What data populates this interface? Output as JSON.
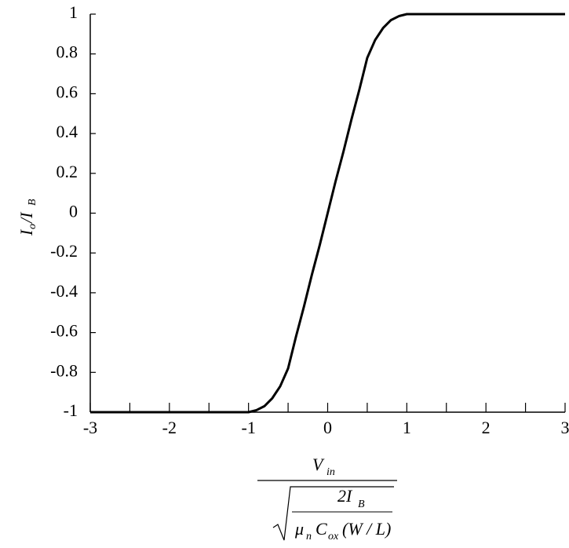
{
  "chart_data": {
    "type": "line",
    "ylabel_parts": [
      "I",
      "o",
      "/I",
      "B"
    ],
    "xlabel_parts": {
      "numerator": "V",
      "numerator_sub": "in",
      "inner_top": "2I",
      "inner_top_sub": "B",
      "mu": "μ",
      "mu_sub": "n",
      "c": "C",
      "c_sub": "ox",
      "ratio": "(W / L)"
    },
    "x": [
      -3,
      -1.1,
      -1.0,
      -0.9,
      -0.8,
      -0.7,
      -0.6,
      -0.5,
      -0.4,
      -0.3,
      -0.2,
      -0.1,
      0,
      0.1,
      0.2,
      0.3,
      0.4,
      0.5,
      0.6,
      0.7,
      0.8,
      0.9,
      1.0,
      1.1,
      3
    ],
    "values": [
      -1,
      -1,
      -1,
      -0.99,
      -0.97,
      -0.93,
      -0.87,
      -0.78,
      -0.62,
      -0.47,
      -0.31,
      -0.16,
      0,
      0.16,
      0.31,
      0.47,
      0.62,
      0.78,
      0.87,
      0.93,
      0.97,
      0.99,
      1,
      1,
      1
    ],
    "color": "#000000",
    "xlim": [
      -3,
      3
    ],
    "xticks": [
      -3,
      -2,
      -1,
      0,
      1,
      2,
      3
    ],
    "xminorticks": [
      -2.5,
      -1.5,
      -0.5,
      0.5,
      1.5,
      2.5
    ],
    "ylim": [
      -1,
      1
    ],
    "yticks": [
      -1,
      -0.8,
      -0.6,
      -0.4,
      -0.2,
      0,
      0.2,
      0.4,
      0.6,
      0.8,
      1
    ],
    "grid": false
  }
}
